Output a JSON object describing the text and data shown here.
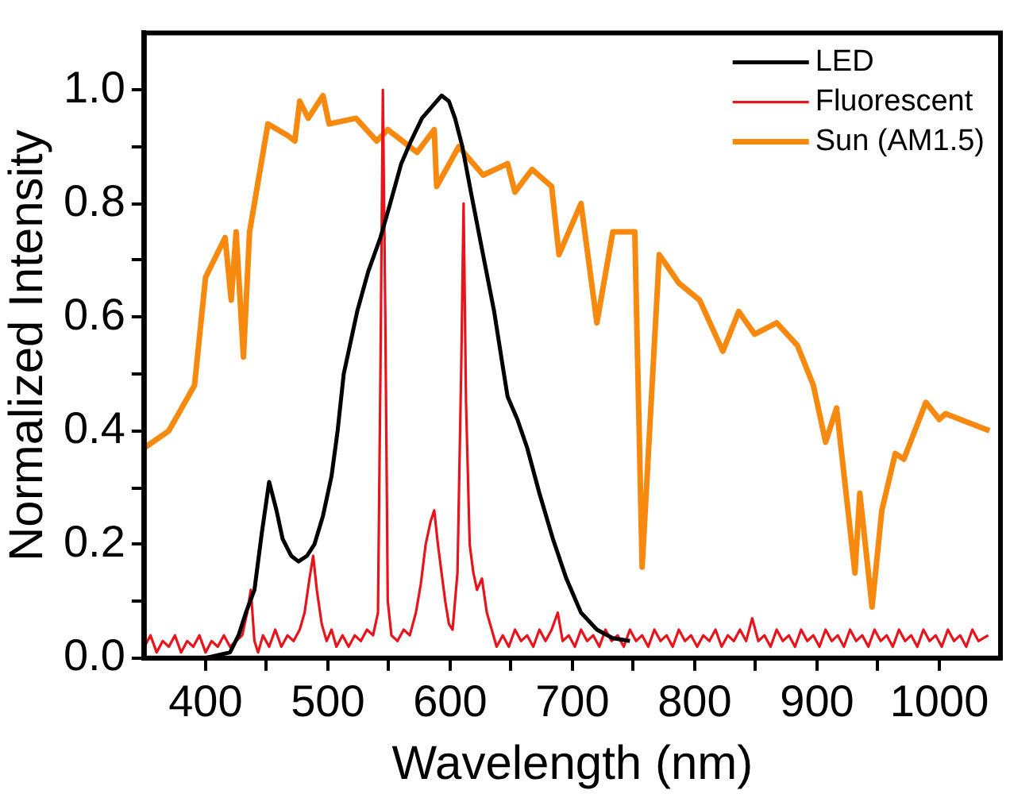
{
  "chart_data": {
    "type": "line",
    "xlabel": "Wavelength (nm)",
    "ylabel": "Normalized Intensity",
    "xlim": [
      350,
      1050
    ],
    "ylim": [
      0,
      1.1
    ],
    "xticks": [
      400,
      {
        "value": 450,
        "label": null
      },
      500,
      {
        "value": 550,
        "label": null
      },
      600,
      {
        "value": 650,
        "label": null
      },
      700,
      {
        "value": 750,
        "label": null
      },
      800,
      {
        "value": 850,
        "label": null
      },
      900,
      {
        "value": 950,
        "label": null
      },
      1000
    ],
    "yticks": [
      {
        "value": 0,
        "label": "0.0"
      },
      {
        "value": 0.1,
        "label": null
      },
      {
        "value": 0.2,
        "label": "0.2"
      },
      {
        "value": 0.3,
        "label": null
      },
      {
        "value": 0.4,
        "label": "0.4"
      },
      {
        "value": 0.5,
        "label": null
      },
      {
        "value": 0.6,
        "label": "0.6"
      },
      {
        "value": 0.7,
        "label": null
      },
      {
        "value": 0.8,
        "label": "0.8"
      },
      {
        "value": 0.9,
        "label": null
      },
      {
        "value": 1.0,
        "label": "1.0"
      }
    ],
    "grid": false,
    "legend": "top right",
    "marker": "none",
    "line_style": "solid",
    "series": [
      {
        "name": "LED",
        "color": "#000000",
        "x": [
          350,
          400,
          420,
          427,
          433,
          440,
          446,
          452,
          458,
          463,
          470,
          476,
          483,
          489,
          496,
          503,
          508,
          513,
          524,
          533,
          543,
          551,
          560,
          568,
          577,
          585,
          593,
          599,
          604,
          610,
          617,
          626,
          636,
          644,
          647,
          655,
          663,
          673,
          684,
          695,
          707,
          720,
          733,
          747
        ],
        "values": [
          0.0,
          0.0,
          0.01,
          0.04,
          0.08,
          0.12,
          0.22,
          0.31,
          0.26,
          0.21,
          0.18,
          0.17,
          0.18,
          0.2,
          0.25,
          0.32,
          0.4,
          0.5,
          0.61,
          0.68,
          0.74,
          0.8,
          0.87,
          0.91,
          0.95,
          0.97,
          0.99,
          0.98,
          0.95,
          0.9,
          0.82,
          0.72,
          0.61,
          0.5,
          0.46,
          0.42,
          0.37,
          0.29,
          0.21,
          0.14,
          0.08,
          0.05,
          0.035,
          0.03
        ]
      },
      {
        "name": "Fluorescent",
        "color": "#e8141c",
        "x": [
          350,
          355,
          360,
          365,
          370,
          375,
          380,
          385,
          390,
          395,
          400,
          405,
          410,
          415,
          420,
          425,
          430,
          434,
          437,
          440,
          443,
          447,
          452,
          457,
          462,
          467,
          472,
          477,
          481,
          485,
          488,
          491,
          495,
          499,
          503,
          507,
          512,
          517,
          522,
          527,
          532,
          537,
          541,
          543,
          545,
          547,
          549,
          552,
          557,
          562,
          567,
          572,
          576,
          580,
          584,
          587,
          590,
          593,
          596,
          599,
          602,
          606,
          609,
          611,
          613,
          616,
          619,
          622,
          626,
          630,
          634,
          638,
          643,
          648,
          653,
          658,
          663,
          668,
          673,
          678,
          683,
          688,
          692,
          697,
          702,
          707,
          712,
          717,
          722,
          727,
          732,
          737,
          742,
          747,
          752,
          757,
          762,
          767,
          772,
          777,
          782,
          787,
          792,
          797,
          802,
          807,
          812,
          817,
          822,
          827,
          832,
          837,
          842,
          847,
          852,
          857,
          862,
          867,
          872,
          877,
          882,
          887,
          892,
          897,
          902,
          907,
          912,
          917,
          922,
          927,
          932,
          937,
          942,
          947,
          952,
          957,
          962,
          967,
          972,
          977,
          982,
          987,
          992,
          997,
          1002,
          1007,
          1012,
          1017,
          1022,
          1027,
          1032,
          1040
        ],
        "values": [
          0.02,
          0.04,
          0.01,
          0.03,
          0.02,
          0.04,
          0.01,
          0.03,
          0.02,
          0.04,
          0.01,
          0.03,
          0.02,
          0.04,
          0.02,
          0.03,
          0.04,
          0.08,
          0.12,
          0.03,
          0.01,
          0.04,
          0.02,
          0.05,
          0.02,
          0.04,
          0.03,
          0.05,
          0.08,
          0.14,
          0.18,
          0.12,
          0.06,
          0.03,
          0.05,
          0.02,
          0.04,
          0.02,
          0.04,
          0.03,
          0.05,
          0.04,
          0.08,
          0.5,
          1.0,
          0.6,
          0.1,
          0.04,
          0.03,
          0.05,
          0.04,
          0.08,
          0.13,
          0.2,
          0.24,
          0.26,
          0.2,
          0.15,
          0.1,
          0.06,
          0.05,
          0.15,
          0.5,
          0.8,
          0.45,
          0.2,
          0.15,
          0.12,
          0.14,
          0.08,
          0.05,
          0.02,
          0.04,
          0.02,
          0.05,
          0.03,
          0.04,
          0.02,
          0.05,
          0.03,
          0.05,
          0.08,
          0.03,
          0.04,
          0.02,
          0.05,
          0.03,
          0.04,
          0.02,
          0.05,
          0.03,
          0.04,
          0.02,
          0.05,
          0.03,
          0.04,
          0.02,
          0.05,
          0.03,
          0.04,
          0.02,
          0.05,
          0.03,
          0.04,
          0.02,
          0.04,
          0.03,
          0.05,
          0.02,
          0.04,
          0.03,
          0.05,
          0.03,
          0.07,
          0.03,
          0.04,
          0.02,
          0.05,
          0.03,
          0.04,
          0.02,
          0.05,
          0.03,
          0.04,
          0.02,
          0.05,
          0.03,
          0.04,
          0.02,
          0.05,
          0.03,
          0.04,
          0.02,
          0.05,
          0.03,
          0.04,
          0.02,
          0.05,
          0.03,
          0.04,
          0.02,
          0.05,
          0.03,
          0.04,
          0.02,
          0.05,
          0.03,
          0.04,
          0.02,
          0.05,
          0.03,
          0.04
        ]
      },
      {
        "name": "Sun (AM1.5)",
        "color": "#f7890f",
        "x": [
          350,
          370,
          391,
          400,
          416,
          421,
          425,
          431,
          436,
          451,
          467,
          473,
          477,
          484,
          496,
          501,
          523,
          540,
          549,
          573,
          587,
          589,
          607,
          627,
          647,
          653,
          667,
          683,
          689,
          707,
          720,
          733,
          751,
          757,
          771,
          787,
          804,
          823,
          836,
          849,
          867,
          884,
          897,
          907,
          916,
          931,
          935,
          945,
          953,
          964,
          971,
          989,
          1000,
          1005,
          1041
        ],
        "values": [
          0.37,
          0.4,
          0.48,
          0.67,
          0.74,
          0.63,
          0.75,
          0.53,
          0.75,
          0.94,
          0.92,
          0.91,
          0.98,
          0.95,
          0.99,
          0.94,
          0.95,
          0.91,
          0.93,
          0.89,
          0.93,
          0.83,
          0.9,
          0.85,
          0.87,
          0.82,
          0.86,
          0.83,
          0.71,
          0.8,
          0.59,
          0.75,
          0.75,
          0.16,
          0.71,
          0.66,
          0.63,
          0.54,
          0.61,
          0.57,
          0.59,
          0.55,
          0.48,
          0.38,
          0.44,
          0.15,
          0.29,
          0.09,
          0.26,
          0.36,
          0.35,
          0.45,
          0.42,
          0.43,
          0.4
        ]
      }
    ]
  }
}
